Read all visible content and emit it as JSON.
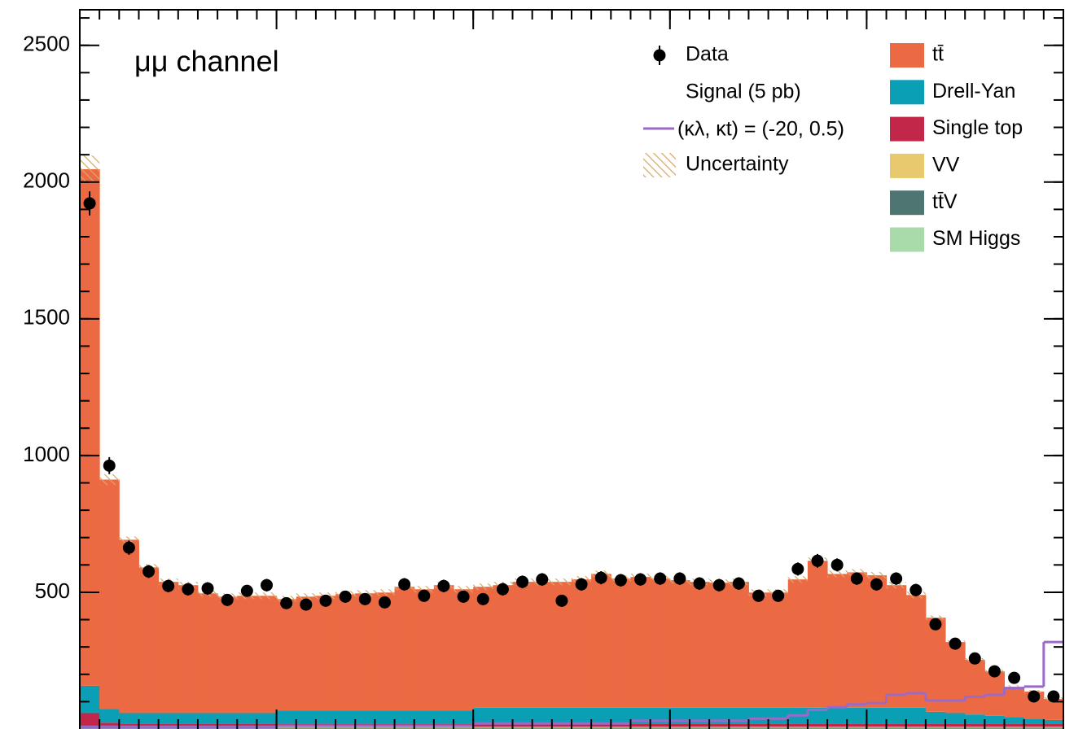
{
  "chart_data": {
    "type": "bar",
    "stacked": true,
    "title": "μμ channel",
    "legend_header": "Signal (5 pb)",
    "categories": [
      null,
      null,
      null,
      null,
      null,
      null,
      null,
      null,
      null,
      null,
      null,
      null,
      null,
      null,
      null,
      null,
      null,
      null,
      null,
      null,
      null,
      null,
      null,
      null,
      null,
      null,
      null,
      null,
      null,
      null,
      null,
      null,
      null,
      null,
      null,
      null,
      null,
      null,
      null,
      null,
      null,
      null,
      null,
      null,
      null,
      null,
      null,
      null,
      null,
      null
    ],
    "xlim": [
      0,
      50
    ],
    "xticks": [
      0,
      10,
      20,
      30,
      40,
      50
    ],
    "ylim": [
      0,
      2630
    ],
    "yticks": [
      500,
      1000,
      1500,
      2000,
      2500
    ],
    "series": [
      {
        "name": "SM Higgs",
        "color": "#a8dba9",
        "values": [
          1,
          1,
          1,
          1,
          1,
          1,
          1,
          1,
          1,
          1,
          1,
          1,
          1,
          1,
          1,
          1,
          1,
          1,
          1,
          1,
          1,
          1,
          1,
          1,
          1,
          1,
          1,
          1,
          1,
          1,
          1,
          1,
          1,
          1,
          1,
          1,
          1,
          1,
          1,
          1,
          1,
          1,
          1,
          1,
          1,
          1,
          1,
          1,
          1,
          1
        ]
      },
      {
        "name": "tt̄V",
        "color": "#4f7573",
        "values": [
          4,
          4,
          4,
          4,
          4,
          4,
          4,
          4,
          4,
          4,
          4,
          4,
          4,
          4,
          4,
          4,
          4,
          4,
          4,
          4,
          4,
          4,
          4,
          4,
          4,
          4,
          4,
          4,
          4,
          4,
          4,
          4,
          4,
          4,
          4,
          4,
          4,
          4,
          4,
          4,
          4,
          4,
          4,
          4,
          4,
          4,
          4,
          4,
          4,
          4
        ]
      },
      {
        "name": "VV",
        "color": "#e8c96d",
        "values": [
          3,
          3,
          3,
          3,
          3,
          3,
          3,
          3,
          3,
          3,
          3,
          3,
          3,
          3,
          3,
          3,
          3,
          3,
          3,
          3,
          3,
          3,
          3,
          3,
          3,
          3,
          3,
          3,
          3,
          3,
          3,
          3,
          3,
          3,
          3,
          3,
          3,
          3,
          3,
          3,
          3,
          3,
          3,
          3,
          3,
          3,
          3,
          3,
          3,
          3
        ]
      },
      {
        "name": "Single top",
        "color": "#c2274a",
        "values": [
          50,
          15,
          10,
          10,
          10,
          10,
          10,
          10,
          10,
          10,
          10,
          10,
          10,
          10,
          10,
          10,
          10,
          10,
          10,
          10,
          10,
          10,
          10,
          10,
          10,
          10,
          10,
          10,
          10,
          10,
          10,
          10,
          10,
          10,
          10,
          10,
          10,
          10,
          10,
          10,
          10,
          10,
          10,
          10,
          10,
          10,
          10,
          10,
          10,
          10
        ]
      },
      {
        "name": "Drell-Yan",
        "color": "#0a9fb4",
        "values": [
          100,
          50,
          40,
          40,
          40,
          40,
          40,
          40,
          40,
          40,
          50,
          50,
          50,
          50,
          50,
          50,
          50,
          50,
          50,
          50,
          60,
          60,
          60,
          60,
          60,
          60,
          60,
          60,
          60,
          60,
          60,
          60,
          60,
          60,
          60,
          60,
          60,
          60,
          60,
          60,
          60,
          60,
          60,
          45,
          40,
          35,
          30,
          25,
          20,
          15
        ]
      },
      {
        "name": "tt̄",
        "color": "#ec6a43",
        "values": [
          1889,
          839,
          634,
          533,
          480,
          468,
          438,
          426,
          429,
          429,
          407,
          416,
          419,
          425,
          428,
          431,
          452,
          443,
          458,
          443,
          442,
          448,
          460,
          460,
          460,
          469,
          489,
          472,
          478,
          472,
          466,
          460,
          457,
          460,
          421,
          421,
          469,
          537,
          489,
          495,
          484,
          448,
          412,
          344,
          260,
          200,
          163,
          111,
          99,
          77
        ]
      }
    ],
    "uncertainty": {
      "name": "Uncertainty",
      "color": "#d8a868",
      "values": [
        50,
        20,
        12,
        12,
        12,
        12,
        12,
        12,
        12,
        12,
        12,
        12,
        12,
        12,
        12,
        12,
        12,
        12,
        12,
        12,
        12,
        12,
        12,
        12,
        12,
        12,
        12,
        12,
        12,
        12,
        12,
        12,
        12,
        12,
        12,
        12,
        12,
        12,
        12,
        12,
        12,
        12,
        12,
        8,
        6,
        6,
        6,
        6,
        6,
        6
      ]
    },
    "signal": {
      "name": "(κλ, κt) = (-20, 0.5)",
      "color": "#9a6bc6",
      "values": [
        8,
        8,
        8,
        8,
        8,
        8,
        8,
        8,
        8,
        8,
        12,
        12,
        12,
        12,
        12,
        12,
        12,
        12,
        12,
        12,
        20,
        20,
        20,
        20,
        20,
        20,
        20,
        20,
        30,
        30,
        30,
        30,
        30,
        30,
        38,
        38,
        50,
        70,
        80,
        90,
        95,
        125,
        131,
        104,
        104,
        118,
        125,
        150,
        155,
        318
      ]
    },
    "data": {
      "name": "Data",
      "color": "#000000",
      "values": [
        1922,
        963,
        663,
        576,
        523,
        511,
        514,
        472,
        505,
        526,
        460,
        455,
        469,
        484,
        475,
        463,
        529,
        487,
        523,
        484,
        475,
        511,
        538,
        547,
        469,
        529,
        553,
        544,
        547,
        550,
        550,
        532,
        526,
        532,
        487,
        487,
        585,
        615,
        600,
        550,
        529,
        550,
        508,
        383,
        312,
        258,
        211,
        187,
        119,
        119
      ],
      "errors": [
        44,
        31,
        26,
        24,
        23,
        23,
        23,
        22,
        22,
        23,
        21,
        21,
        22,
        22,
        22,
        22,
        23,
        22,
        23,
        22,
        22,
        23,
        23,
        23,
        22,
        23,
        24,
        23,
        23,
        23,
        23,
        23,
        23,
        23,
        22,
        22,
        24,
        25,
        24,
        23,
        23,
        23,
        23,
        20,
        18,
        16,
        15,
        14,
        11,
        11
      ]
    }
  }
}
